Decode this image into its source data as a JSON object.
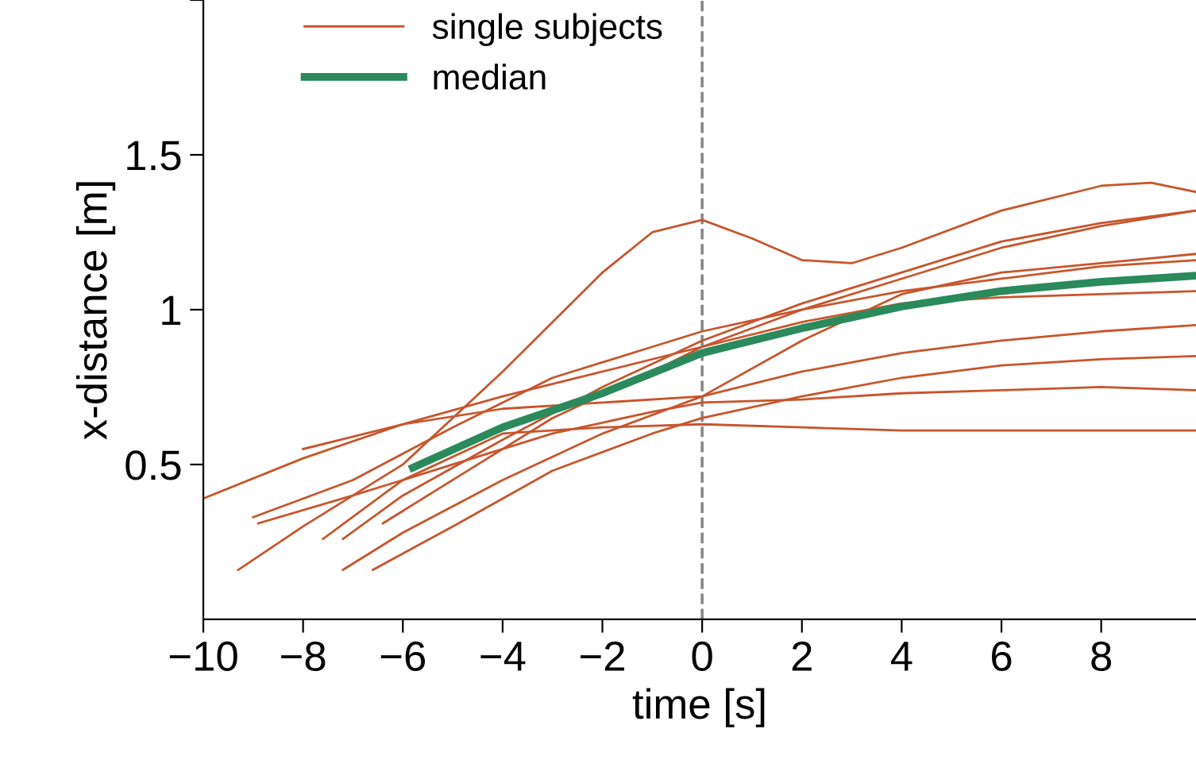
{
  "chart_data": {
    "type": "line",
    "xlabel": "time [s]",
    "ylabel": "x-distance [m]",
    "xlim": [
      -10,
      9.9
    ],
    "xticks": [
      {
        "value": -10,
        "label": "−10"
      },
      {
        "value": -8,
        "label": "−8"
      },
      {
        "value": -6,
        "label": "−6"
      },
      {
        "value": -4,
        "label": "−4"
      },
      {
        "value": -2,
        "label": "−2"
      },
      0,
      2,
      4,
      6,
      8
    ],
    "ylim": [
      0,
      2
    ],
    "yticks": [
      0.5,
      1,
      1.5,
      {
        "value": 2,
        "label": null
      }
    ],
    "legend": "top left",
    "grid": false,
    "line_style": "solid",
    "marker": "none",
    "ref_lines": [
      {
        "axis": "x",
        "value": 0,
        "color": "#888888",
        "line_style": "dashed"
      }
    ],
    "series": [
      {
        "name": "single subjects",
        "color": "#c8552c",
        "x": [
          -10,
          -8,
          -6,
          -4,
          -2,
          0,
          2,
          4,
          6,
          8,
          9.9
        ],
        "values": [
          0.39,
          0.52,
          0.63,
          0.72,
          0.8,
          0.88,
          0.96,
          1.02,
          1.04,
          1.05,
          1.06
        ]
      },
      {
        "color": "#c8552c",
        "x": [
          -9.3,
          -8,
          -6,
          -4,
          -2,
          -1,
          0,
          1,
          2,
          3,
          4,
          6,
          8,
          9,
          9.9
        ],
        "values": [
          0.16,
          0.3,
          0.5,
          0.8,
          1.12,
          1.25,
          1.29,
          1.23,
          1.16,
          1.15,
          1.2,
          1.32,
          1.4,
          1.41,
          1.38
        ]
      },
      {
        "color": "#c8552c",
        "x": [
          -8.9,
          -7,
          -5,
          -3,
          -1,
          0,
          2,
          4,
          6,
          8,
          9.9
        ],
        "values": [
          0.31,
          0.4,
          0.5,
          0.6,
          0.67,
          0.7,
          0.71,
          0.73,
          0.74,
          0.75,
          0.74
        ]
      },
      {
        "color": "#c8552c",
        "x": [
          -7.6,
          -6,
          -4,
          -2,
          0,
          2,
          4,
          6,
          8,
          9.9
        ],
        "values": [
          0.26,
          0.45,
          0.6,
          0.62,
          0.63,
          0.62,
          0.61,
          0.61,
          0.61,
          0.61
        ]
      },
      {
        "color": "#c8552c",
        "x": [
          -7.2,
          -6,
          -4,
          -2,
          0,
          2,
          4,
          6,
          8,
          9.9
        ],
        "values": [
          0.26,
          0.4,
          0.58,
          0.75,
          0.9,
          1.02,
          1.12,
          1.22,
          1.28,
          1.32
        ]
      },
      {
        "color": "#c8552c",
        "x": [
          -7.2,
          -6,
          -4,
          -2,
          0,
          2,
          4,
          6,
          8,
          9.9
        ],
        "values": [
          0.16,
          0.28,
          0.45,
          0.6,
          0.72,
          0.8,
          0.86,
          0.9,
          0.93,
          0.95
        ]
      },
      {
        "color": "#c8552c",
        "x": [
          -6.6,
          -5,
          -3,
          -1,
          0,
          2,
          4,
          6,
          8,
          9.9
        ],
        "values": [
          0.16,
          0.3,
          0.48,
          0.6,
          0.65,
          0.72,
          0.78,
          0.82,
          0.84,
          0.85
        ]
      },
      {
        "color": "#c8552c",
        "x": [
          -6.4,
          -5,
          -3,
          -1,
          0,
          2,
          4,
          6,
          8,
          9.9
        ],
        "values": [
          0.31,
          0.45,
          0.65,
          0.8,
          0.88,
          1.0,
          1.1,
          1.2,
          1.27,
          1.32
        ]
      },
      {
        "color": "#c8552c",
        "x": [
          -8,
          -6,
          -4,
          -2,
          0,
          2,
          4,
          6,
          8,
          9.9
        ],
        "values": [
          0.55,
          0.63,
          0.68,
          0.7,
          0.72,
          0.9,
          1.05,
          1.12,
          1.15,
          1.18
        ]
      },
      {
        "color": "#c8552c",
        "x": [
          -9,
          -7,
          -5,
          -3,
          -1,
          0,
          2,
          4,
          6,
          8,
          9.9
        ],
        "values": [
          0.33,
          0.45,
          0.62,
          0.78,
          0.88,
          0.93,
          1.0,
          1.06,
          1.1,
          1.14,
          1.16
        ]
      },
      {
        "name": "median",
        "color": "#2a8a5c",
        "x": [
          -5.8,
          -4,
          -2,
          0,
          2,
          4,
          6,
          8,
          9.9
        ],
        "values": [
          0.49,
          0.62,
          0.73,
          0.86,
          0.94,
          1.01,
          1.06,
          1.09,
          1.11
        ]
      }
    ]
  }
}
